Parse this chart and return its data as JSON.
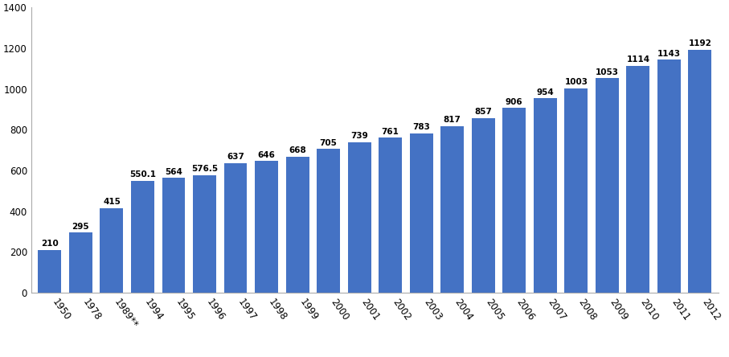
{
  "categories": [
    "1950",
    "1978",
    "1989**",
    "1994",
    "1995",
    "1996",
    "1997",
    "1998",
    "1999",
    "2000",
    "2001",
    "2002",
    "2003",
    "2004",
    "2005",
    "2006",
    "2007",
    "2008",
    "2009",
    "2010",
    "2011",
    "2012"
  ],
  "values": [
    210,
    295,
    415,
    550.1,
    564,
    576.5,
    637,
    646,
    668,
    705,
    739,
    761,
    783,
    817,
    857,
    906,
    954,
    1003,
    1053,
    1114,
    1143,
    1192
  ],
  "bar_color": "#4472C4",
  "ylim": [
    0,
    1400
  ],
  "yticks": [
    0,
    200,
    400,
    600,
    800,
    1000,
    1200,
    1400
  ],
  "label_fontsize": 7.5,
  "tick_fontsize": 8.5,
  "background_color": "#ffffff",
  "bar_edge_color": "none"
}
